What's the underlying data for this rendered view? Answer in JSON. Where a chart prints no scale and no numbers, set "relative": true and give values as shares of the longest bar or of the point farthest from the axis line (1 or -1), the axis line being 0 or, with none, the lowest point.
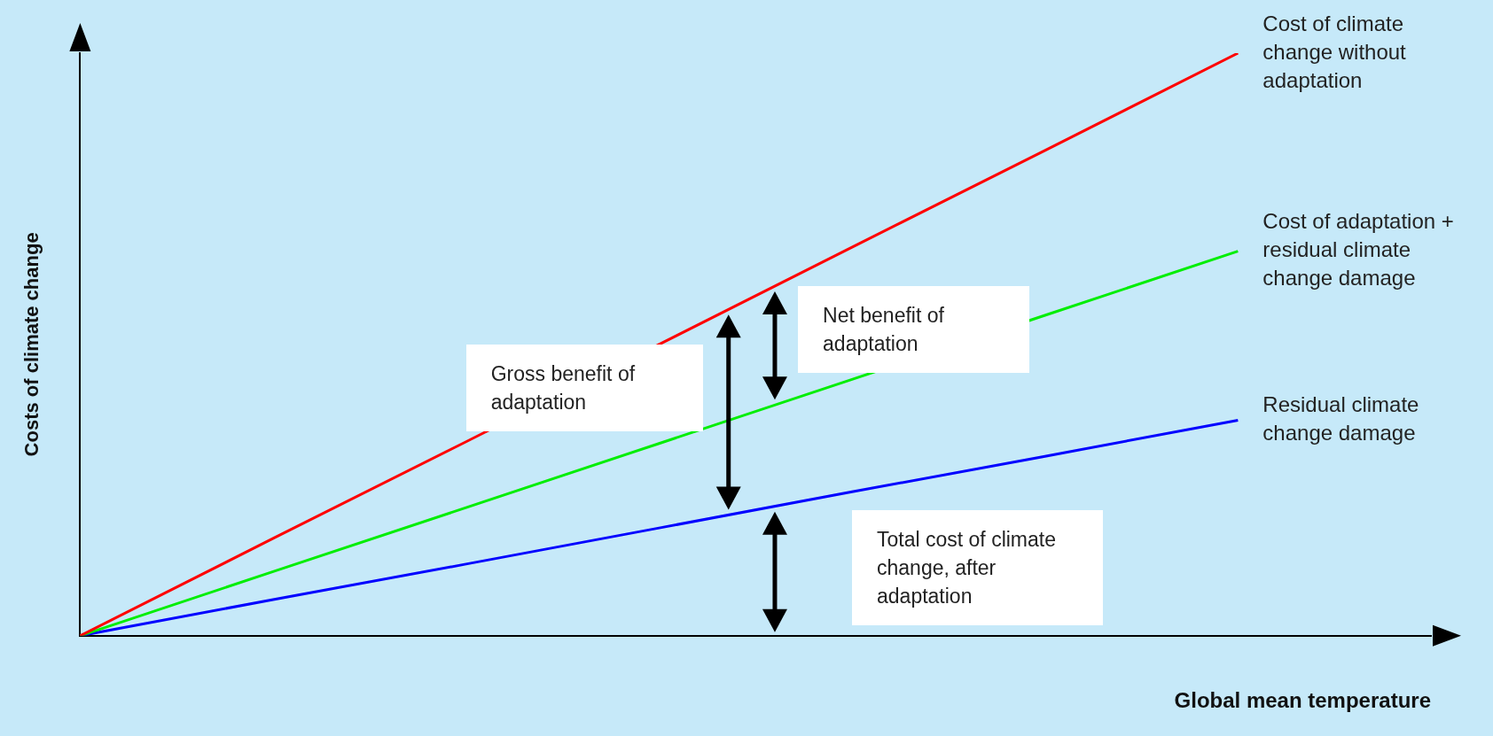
{
  "chart_data": {
    "type": "line",
    "relative": true,
    "ylabel": "Costs of climate change",
    "xlabel": "Global mean temperature",
    "categories": [
      null,
      null,
      null,
      null,
      null,
      null,
      null,
      null
    ],
    "series": [
      {
        "name": "Cost of climate change without adaptation",
        "color": "#ff0000",
        "values": [
          0,
          0.167,
          0.333,
          0.5,
          0.667,
          0.833,
          1,
          null
        ]
      },
      {
        "name": "Cost of adaptation + residual climate change damage",
        "color": "#00ee00",
        "values": [
          0,
          0.11,
          0.22,
          0.33,
          0.44,
          0.55,
          0.66,
          null
        ]
      },
      {
        "name": "Residual climate change damage",
        "color": "#0000ff",
        "values": [
          0,
          0.062,
          0.123,
          0.185,
          0.247,
          0.308,
          0.37,
          null
        ]
      }
    ],
    "annotations": [
      "Gross benefit of adaptation",
      "Net benefit of adaptation",
      "Total cost of climate change, after adaptation"
    ],
    "grid": false,
    "legend": false,
    "marker": "none",
    "line_style": "solid"
  }
}
